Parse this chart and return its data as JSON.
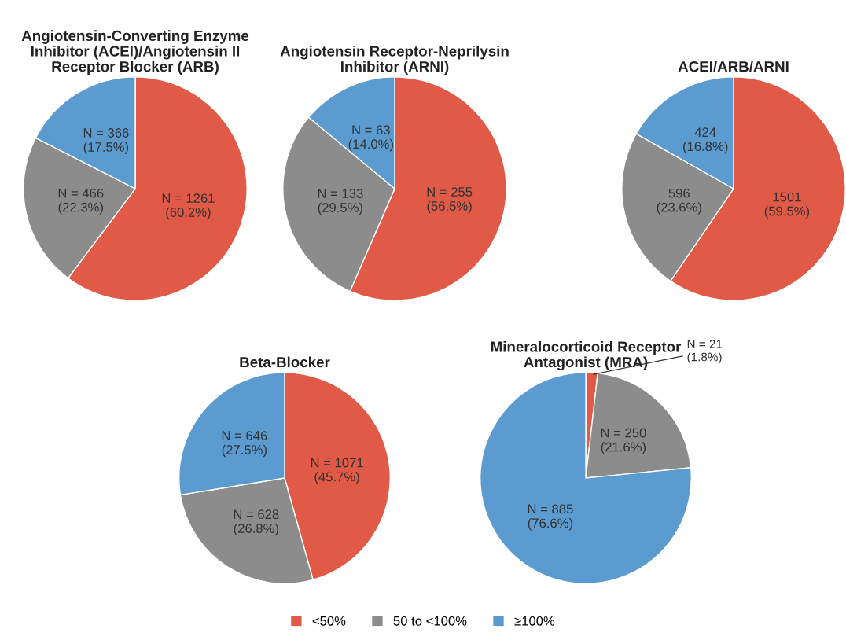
{
  "chart_data": [
    {
      "type": "pie",
      "title": "Angiotensin-Converting Enzyme\nInhibitor (ACEI)/Angiotensin II\nReceptor Blocker (ARB)",
      "categories": [
        "<50%",
        "50 to <100%",
        "≥100%"
      ],
      "values": [
        1261,
        466,
        366
      ],
      "colors": [
        "#e05a47",
        "#8c8c8c",
        "#5b9bd0"
      ],
      "value_labels": [
        "N = 1261\n(60.2%)",
        "N = 466\n(22.3%)",
        "N = 366\n(17.5%)"
      ],
      "legend": "bottom"
    },
    {
      "type": "pie",
      "title": "Angiotensin Receptor-Neprilysin\nInhibitor (ARNI)",
      "values": [
        255,
        133,
        63
      ],
      "colors": [
        "#e05a47",
        "#8c8c8c",
        "#5b9bd0"
      ],
      "value_labels": [
        "N = 255\n(56.5%)",
        "N = 133\n(29.5%)",
        "N = 63\n(14.0%)"
      ]
    },
    {
      "type": "pie",
      "title": "ACEI/ARB/ARNI",
      "values": [
        1501,
        596,
        424
      ],
      "colors": [
        "#e05a47",
        "#8c8c8c",
        "#5b9bd0"
      ],
      "value_labels": [
        "1501\n(59.5%)",
        "596\n(23.6%)",
        "424\n(16.8%)"
      ]
    },
    {
      "type": "pie",
      "title": "Beta-Blocker",
      "values": [
        1071,
        628,
        646
      ],
      "colors": [
        "#e05a47",
        "#8c8c8c",
        "#5b9bd0"
      ],
      "value_labels": [
        "N = 1071\n(45.7%)",
        "N = 628\n(26.8%)",
        "N = 646\n(27.5%)"
      ]
    },
    {
      "type": "pie",
      "title": "Mineralocorticoid Receptor\nAntagonist (MRA)",
      "values": [
        21,
        250,
        885
      ],
      "colors": [
        "#e05a47",
        "#8c8c8c",
        "#5b9bd0"
      ],
      "value_labels": [
        "N = 21\n(1.8%)",
        "N = 250\n(21.6%)",
        "N = 885\n(76.6%)"
      ]
    }
  ]
}
